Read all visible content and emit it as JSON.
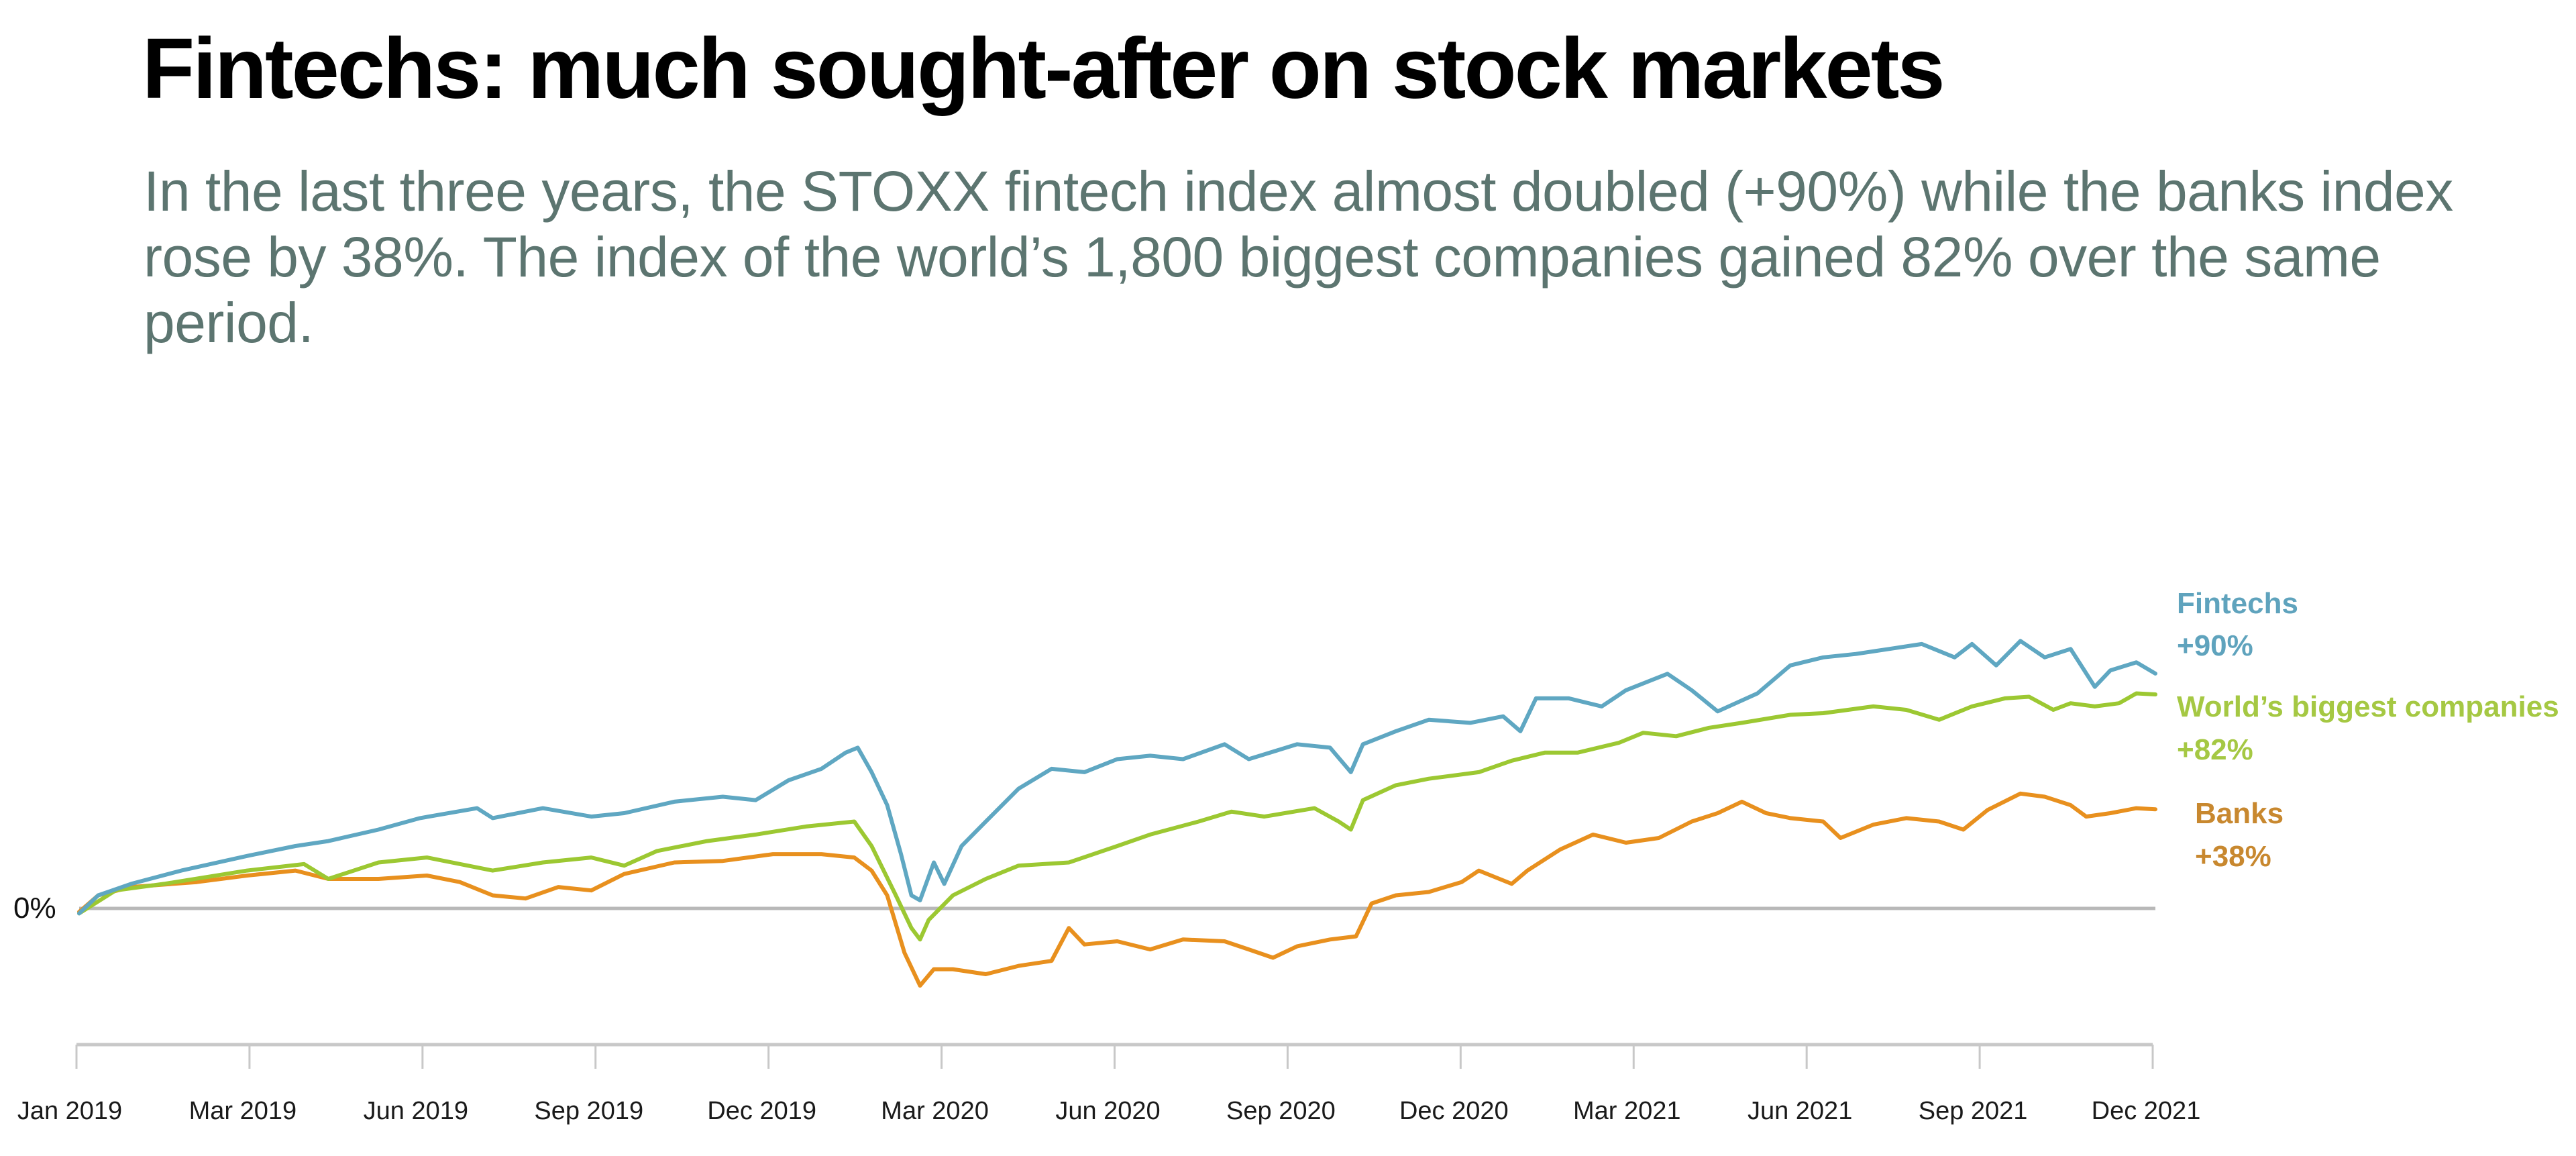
{
  "header": {
    "title": "Fintechs: much sought-after on stock markets",
    "subtitle": "In the last three years, the STOXX fintech index almost doubled (+90%) while the banks index rose by 38%. The index of the world’s 1,800 biggest companies gained 82% over the same period."
  },
  "chart_data": {
    "type": "line",
    "title": "Fintechs: much sought-after on stock markets",
    "xlabel": "",
    "ylabel": "",
    "x_unit": "quarter index from Jan 2019 (0) to end of Jan 2022 (12)",
    "x_ticks": [
      0,
      1,
      2,
      3,
      4,
      5,
      6,
      7,
      8,
      9,
      10,
      11,
      12
    ],
    "x_tick_labels": [
      "Jan 2019",
      "Mar 2019",
      "Jun 2019",
      "Sep 2019",
      "Dec 2019",
      "Mar 2020",
      "Jun 2020",
      "Sep 2020",
      "Dec 2020",
      "Mar 2021",
      "Jun 2021",
      "Sep 2021",
      "Dec 2021"
    ],
    "xlim": [
      0,
      12
    ],
    "ylim": [
      -40,
      120
    ],
    "y_reference_line": {
      "value": 0,
      "label": "0%"
    },
    "grid": false,
    "legend_placement": "right (inline end labels)",
    "series": [
      {
        "name": "Fintechs",
        "end_label": "+90%",
        "color": "#5fa7c2",
        "label_color": "#5fa3bd",
        "x": [
          0,
          0.11,
          0.3,
          0.59,
          0.97,
          1.25,
          1.44,
          1.73,
          1.97,
          2.3,
          2.39,
          2.68,
          2.96,
          3.15,
          3.44,
          3.72,
          3.91,
          4.1,
          4.29,
          4.43,
          4.5,
          4.58,
          4.67,
          4.75,
          4.81,
          4.86,
          4.94,
          5.0,
          5.1,
          5.24,
          5.43,
          5.62,
          5.81,
          6.0,
          6.19,
          6.38,
          6.62,
          6.76,
          7.04,
          7.23,
          7.35,
          7.42,
          7.61,
          7.8,
          8.04,
          8.23,
          8.33,
          8.42,
          8.61,
          8.8,
          8.94,
          9.18,
          9.32,
          9.47,
          9.7,
          9.89,
          10.08,
          10.27,
          10.46,
          10.65,
          10.84,
          10.94,
          11.08,
          11.22,
          11.36,
          11.51,
          11.65,
          11.74,
          11.89,
          12.0
        ],
        "values": [
          -1.9,
          5.0,
          9.4,
          14.5,
          20.1,
          23.9,
          25.8,
          30.2,
          34.6,
          38.4,
          34.6,
          38.4,
          35.2,
          36.5,
          40.9,
          42.8,
          41.5,
          49.1,
          53.5,
          59.7,
          61.6,
          52.2,
          39.6,
          20.8,
          5.0,
          3.1,
          17.6,
          9.4,
          23.9,
          33.3,
          45.9,
          53.5,
          52.2,
          57.2,
          58.5,
          57.2,
          62.9,
          57.2,
          62.9,
          61.6,
          52.2,
          62.9,
          67.9,
          72.3,
          71.1,
          73.6,
          67.9,
          80.5,
          80.5,
          77.4,
          83.6,
          89.9,
          83.6,
          75.5,
          82.4,
          93.1,
          96.2,
          97.5,
          99.4,
          101.3,
          96.2,
          101.3,
          93.1,
          102.5,
          96.2,
          99.4,
          84.9,
          91.2,
          94.3,
          90.0
        ]
      },
      {
        "name": "World’s biggest companies",
        "end_label": "+82%",
        "color": "#9cc832",
        "label_color": "#a5c843",
        "x": [
          0,
          0.21,
          0.49,
          0.97,
          1.3,
          1.44,
          1.73,
          2.01,
          2.39,
          2.68,
          2.96,
          3.15,
          3.34,
          3.63,
          3.91,
          4.2,
          4.48,
          4.58,
          4.72,
          4.81,
          4.86,
          4.91,
          5.05,
          5.24,
          5.43,
          5.72,
          6.0,
          6.19,
          6.47,
          6.66,
          6.85,
          7.14,
          7.28,
          7.35,
          7.42,
          7.61,
          7.8,
          8.09,
          8.28,
          8.47,
          8.66,
          8.9,
          9.04,
          9.23,
          9.42,
          9.61,
          9.89,
          10.08,
          10.37,
          10.56,
          10.75,
          10.94,
          11.13,
          11.27,
          11.41,
          11.51,
          11.65,
          11.79,
          11.89,
          12.0
        ],
        "values": [
          -1.9,
          6.9,
          9.4,
          14.5,
          17.0,
          11.3,
          17.6,
          19.5,
          14.5,
          17.6,
          19.5,
          16.4,
          22.0,
          25.8,
          28.3,
          31.4,
          33.3,
          23.9,
          5.0,
          -7.5,
          -11.9,
          -4.4,
          5.0,
          11.3,
          16.4,
          17.6,
          23.9,
          28.3,
          33.3,
          37.1,
          35.2,
          38.4,
          33.3,
          30.2,
          41.5,
          47.2,
          49.7,
          52.2,
          56.6,
          59.7,
          59.7,
          63.5,
          67.3,
          66.0,
          69.2,
          71.1,
          74.2,
          74.8,
          77.4,
          76.1,
          72.3,
          77.4,
          80.5,
          81.1,
          76.1,
          78.6,
          77.4,
          78.6,
          82.4,
          82.0
        ]
      },
      {
        "name": "Banks",
        "end_label": "+38%",
        "color": "#e8901e",
        "label_color": "#c8882f",
        "x": [
          0,
          0.11,
          0.3,
          0.68,
          0.97,
          1.25,
          1.44,
          1.73,
          2.01,
          2.2,
          2.39,
          2.58,
          2.77,
          2.96,
          3.15,
          3.44,
          3.72,
          4.01,
          4.29,
          4.48,
          4.58,
          4.67,
          4.77,
          4.86,
          4.94,
          5.05,
          5.24,
          5.43,
          5.62,
          5.72,
          5.81,
          6.0,
          6.19,
          6.38,
          6.62,
          6.76,
          6.9,
          7.04,
          7.23,
          7.38,
          7.47,
          7.61,
          7.8,
          7.99,
          8.09,
          8.28,
          8.37,
          8.56,
          8.75,
          8.94,
          9.13,
          9.32,
          9.47,
          9.61,
          9.75,
          9.89,
          10.08,
          10.18,
          10.37,
          10.56,
          10.75,
          10.89,
          11.03,
          11.22,
          11.36,
          11.51,
          11.6,
          11.74,
          11.89,
          12.0
        ],
        "values": [
          -1.3,
          5.0,
          8.2,
          10.1,
          12.6,
          14.5,
          11.3,
          11.3,
          12.6,
          10.1,
          5.0,
          3.8,
          8.2,
          6.9,
          13.2,
          17.6,
          18.2,
          20.8,
          20.8,
          19.5,
          14.5,
          5.0,
          -17.0,
          -29.6,
          -23.3,
          -23.3,
          -25.2,
          -22.0,
          -20.1,
          -7.5,
          -13.8,
          -12.6,
          -15.7,
          -11.9,
          -12.6,
          -15.7,
          -18.9,
          -14.5,
          -11.9,
          -10.7,
          1.9,
          5.0,
          6.3,
          10.1,
          14.5,
          9.4,
          14.5,
          22.6,
          28.3,
          25.2,
          27.0,
          33.3,
          36.5,
          40.9,
          36.5,
          34.6,
          33.3,
          27.0,
          32.1,
          34.6,
          33.3,
          30.2,
          37.7,
          44.0,
          42.8,
          39.6,
          35.2,
          36.5,
          38.4,
          38.0
        ]
      }
    ]
  }
}
